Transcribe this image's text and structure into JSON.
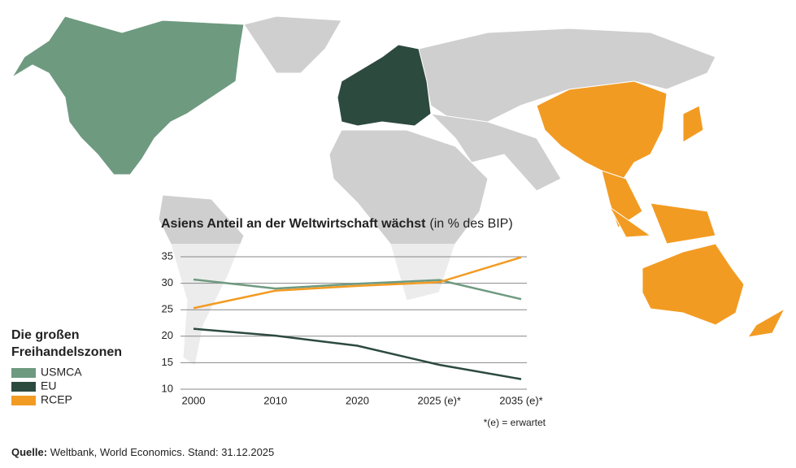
{
  "chart_data": {
    "type": "line",
    "title": "Asiens Anteil an der Weltwirtschaft wächst",
    "subtitle": "(in % des BIP)",
    "legend_title": "Die großen Freihandelszonen",
    "note": "*(e) = erwartet",
    "categories": [
      "2000",
      "2010",
      "2020",
      "2025 (e)*",
      "2035 (e)*"
    ],
    "series": [
      {
        "name": "USMCA",
        "color": "#6e9a80",
        "values": [
          30.7,
          29.0,
          29.9,
          30.6,
          27.0
        ]
      },
      {
        "name": "EU",
        "color": "#2d4a3f",
        "values": [
          21.4,
          20.1,
          18.2,
          14.6,
          11.9
        ]
      },
      {
        "name": "RCEP",
        "color": "#f29b22",
        "values": [
          25.3,
          28.6,
          29.5,
          30.2,
          34.9
        ]
      }
    ],
    "ylim": [
      10,
      35
    ],
    "yticks": [
      10,
      15,
      20,
      25,
      30,
      35
    ],
    "grid": true
  },
  "source": {
    "label": "Quelle:",
    "text": "Weltbank, World Economics. Stand: 31.12.2025"
  }
}
